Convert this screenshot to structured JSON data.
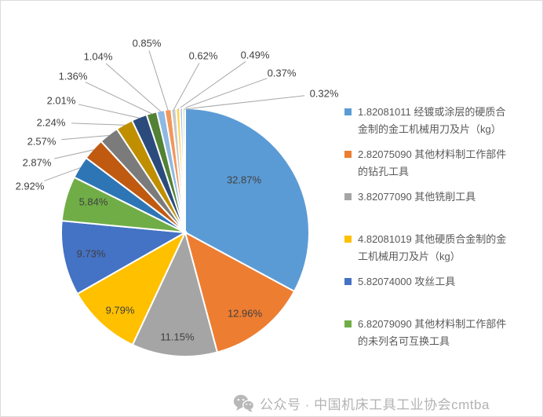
{
  "chart_data": {
    "type": "pie",
    "title": "",
    "legend_position": "right",
    "data_label_format": "percent_2dp",
    "values": [
      32.87,
      12.96,
      11.15,
      9.79,
      9.73,
      5.84,
      2.92,
      2.87,
      2.57,
      2.24,
      2.01,
      1.36,
      1.04,
      0.85,
      0.62,
      0.49,
      0.37,
      0.32
    ],
    "colors": [
      "#5B9BD5",
      "#ED7D31",
      "#A5A5A5",
      "#FFC000",
      "#4472C4",
      "#70AD47",
      "#2E75B6",
      "#C05A11",
      "#7B7B7B",
      "#BF8F00",
      "#2A4B7C",
      "#538135",
      "#8FB8E3",
      "#F1975A",
      "#C9C9C9",
      "#FFD34D",
      "#A9C5EB",
      "#C5E0B4"
    ],
    "legend": [
      {
        "label": "1.82081011 经镀或涂层的硬质合金制的金工机械用刀及片（kg）",
        "color": "#5B9BD5"
      },
      {
        "label": "2.82075090 其他材料制工作部件的钻孔工具",
        "color": "#ED7D31"
      },
      {
        "label": "3.82077090 其他铣削工具",
        "color": "#A5A5A5"
      },
      {
        "label": "4.82081019 其他硬质合金制的金工机械用刀及片（kg）",
        "color": "#FFC000"
      },
      {
        "label": "5.82074000 攻丝工具",
        "color": "#4472C4"
      },
      {
        "label": "6.82079090 其他材料制工作部件的未列名可互换工具",
        "color": "#70AD47"
      }
    ]
  },
  "watermark": {
    "icon": "wechat-icon",
    "text": "公众号 · 中国机床工具工业协会cmtba"
  },
  "colors": {
    "background": "#ffffff",
    "frame_border": "#dcdcdc",
    "data_label": "#404040",
    "leader_line": "#A6A6A6",
    "legend_text": "#595959",
    "watermark_text": "#b3b3b3",
    "watermark_icon": "#b8b8b8",
    "slice_stroke": "#ffffff"
  }
}
